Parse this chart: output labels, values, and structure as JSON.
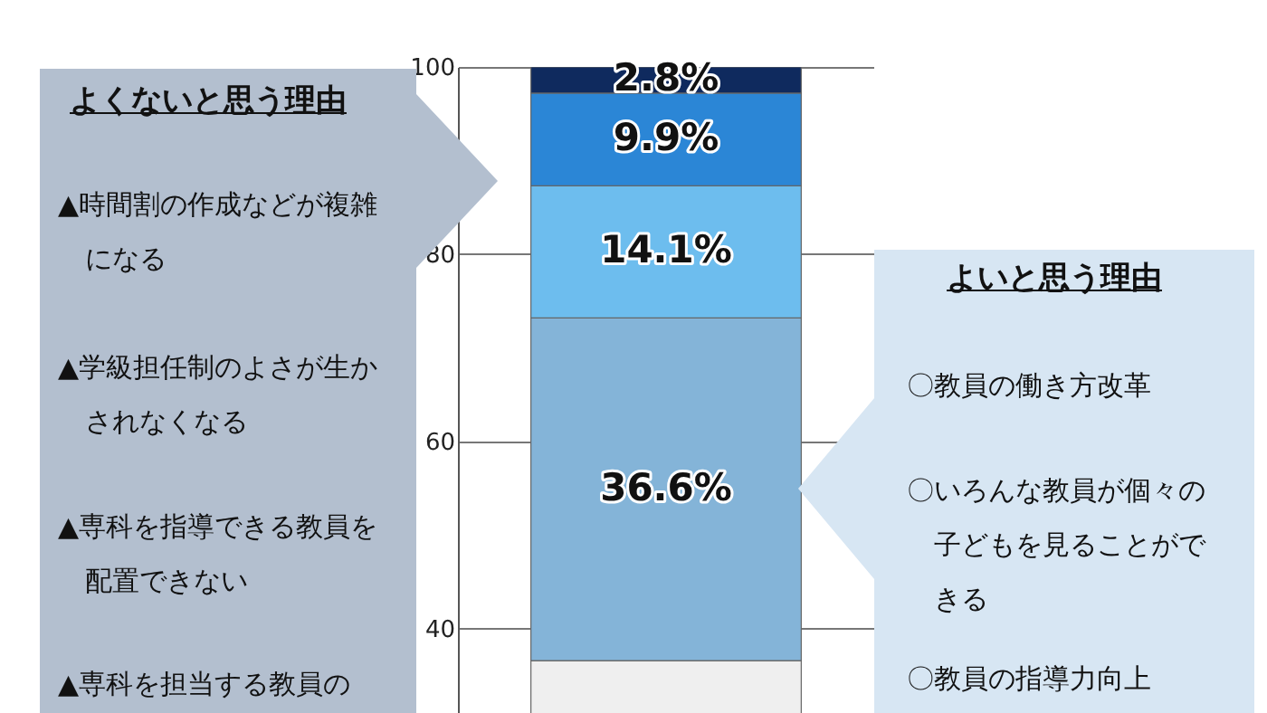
{
  "chart_data": {
    "type": "bar",
    "categories": [
      null
    ],
    "series": [
      {
        "color": "#efefef",
        "values": [
          36.6
        ],
        "base": [
          0
        ],
        "value_labels": [
          null
        ]
      },
      {
        "color": "#84b4d8",
        "values": [
          36.6
        ],
        "base": [
          36.6
        ],
        "value_labels": [
          "36.6%"
        ]
      },
      {
        "color": "#6dbdee",
        "values": [
          14.1
        ],
        "base": [
          73.2
        ],
        "value_labels": [
          "14.1%"
        ]
      },
      {
        "color": "#2b86d6",
        "values": [
          9.9
        ],
        "base": [
          87.3
        ],
        "value_labels": [
          "9.9%"
        ]
      },
      {
        "color": "#0f2a5e",
        "values": [
          2.8
        ],
        "base": [
          97.2
        ],
        "value_labels": [
          "2.8%"
        ]
      }
    ],
    "ylim": [
      31,
      100
    ],
    "yticks": [
      40,
      60,
      80,
      100
    ],
    "grid": "y",
    "annotations": [
      "よくないと思う理由",
      "▲時間割の作成などが複雑になる",
      "▲学級担任制のよさが生かされなくなる",
      "▲専科を指導できる教員を配置できない",
      "▲専科を担当する教員の",
      "よいと思う理由",
      "〇教員の働き方改革",
      "〇いろんな教員が個々の子どもを見ることができる",
      "〇教員の指導力向上"
    ]
  }
}
